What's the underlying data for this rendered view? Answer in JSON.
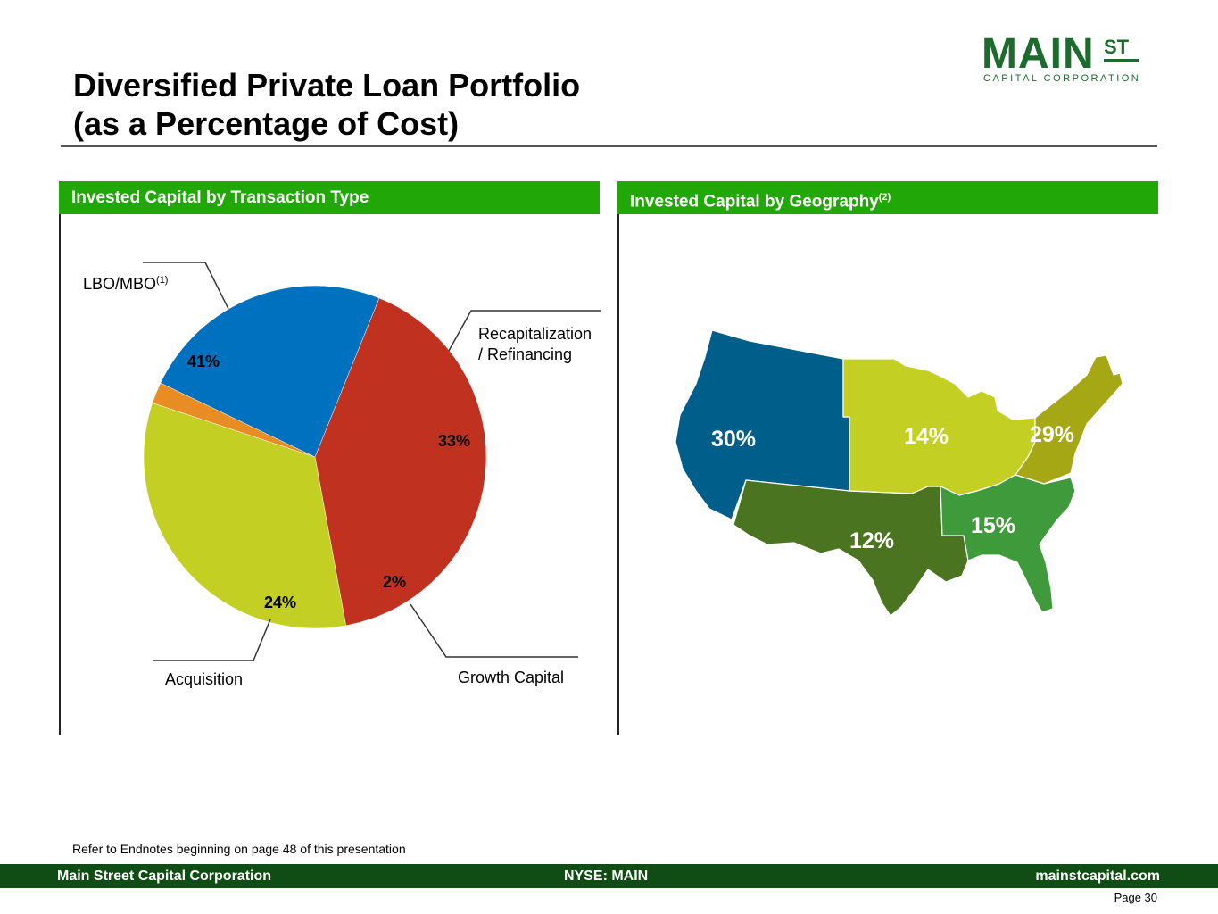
{
  "title_line1": "Diversified Private Loan Portfolio",
  "title_line2": "(as a Percentage of Cost)",
  "logo": {
    "main": "MAIN",
    "st": "ST",
    "sub": "CAPITAL CORPORATION"
  },
  "left_panel": {
    "title": "Invested Capital by Transaction Type"
  },
  "right_panel": {
    "title": "Invested Capital by Geography",
    "title_sup": "(2)"
  },
  "labels": {
    "lbo": "LBO/MBO",
    "lbo_sup": "(1)",
    "recap_line1": "Recapitalization",
    "recap_line2": "/ Refinancing",
    "growth": "Growth Capital",
    "acquisition": "Acquisition"
  },
  "chart_data": [
    {
      "type": "pie",
      "categories": [
        "LBO/MBO",
        "Recapitalization / Refinancing",
        "Growth Capital",
        "Acquisition"
      ],
      "values": [
        41,
        33,
        2,
        24
      ],
      "data_labels": [
        "41%",
        "33%",
        "2%",
        "24%"
      ],
      "colors": [
        "#c0311f",
        "#c3cf22",
        "#e88d23",
        "#0071bf"
      ],
      "legend": "none"
    },
    {
      "type": "map",
      "categories": [
        "West",
        "Midwest",
        "Northeast",
        "Southwest",
        "Southeast"
      ],
      "values": [
        30,
        14,
        29,
        12,
        15
      ],
      "data_labels": [
        "30%",
        "14%",
        "29%",
        "12%",
        "15%"
      ],
      "colors": [
        "#005f8a",
        "#c3cf22",
        "#a5a814",
        "#4b7421",
        "#3e9a3a"
      ]
    }
  ],
  "endnote": "Refer to Endnotes beginning on page 48 of this presentation",
  "footer": {
    "left": "Main Street Capital Corporation",
    "center": "NYSE: MAIN",
    "right": "mainstcapital.com"
  },
  "page": "Page  30"
}
